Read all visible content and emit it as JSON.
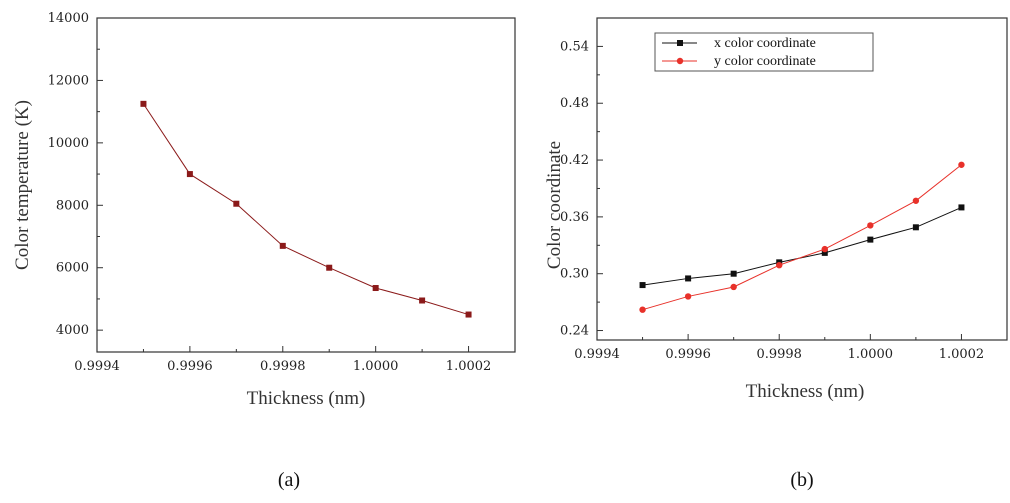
{
  "chart_data": [
    {
      "type": "line",
      "panel_label": "(a)",
      "xlabel": "Thickness (nm)",
      "ylabel": "Color temperature (K)",
      "xlim": [
        0.9994,
        1.0003
      ],
      "ylim": [
        3300,
        14000
      ],
      "x_ticks": [
        "0.9994",
        "0.9996",
        "0.9998",
        "1.0000",
        "1.0002"
      ],
      "y_ticks": [
        "4000",
        "6000",
        "8000",
        "10000",
        "12000",
        "14000"
      ],
      "series": [
        {
          "name": "",
          "color": "#8b1a1a",
          "x": [
            0.9995,
            0.9996,
            0.9997,
            0.9998,
            0.9999,
            1.0,
            1.0001,
            1.0002
          ],
          "y": [
            11250,
            9000,
            8050,
            6700,
            6000,
            5350,
            4950,
            4500
          ]
        }
      ]
    },
    {
      "type": "line",
      "panel_label": "(b)",
      "xlabel": "Thickness (nm)",
      "ylabel": "Color coordinate",
      "xlim": [
        0.9994,
        1.0003
      ],
      "ylim": [
        0.23,
        0.57
      ],
      "x_ticks": [
        "0.9994",
        "0.9996",
        "0.9998",
        "1.0000",
        "1.0002"
      ],
      "y_ticks": [
        "0.24",
        "0.30",
        "0.36",
        "0.42",
        "0.48",
        "0.54"
      ],
      "legend": "top-left",
      "series": [
        {
          "name": "x color coordinate",
          "color": "#111111",
          "x": [
            0.9995,
            0.9996,
            0.9997,
            0.9998,
            0.9999,
            1.0,
            1.0001,
            1.0002
          ],
          "y": [
            0.288,
            0.295,
            0.3,
            0.312,
            0.322,
            0.336,
            0.349,
            0.37
          ]
        },
        {
          "name": "y color coordinate",
          "color": "#e8312a",
          "x": [
            0.9995,
            0.9996,
            0.9997,
            0.9998,
            0.9999,
            1.0,
            1.0001,
            1.0002
          ],
          "y": [
            0.262,
            0.276,
            0.286,
            0.309,
            0.326,
            0.351,
            0.377,
            0.415
          ]
        }
      ]
    }
  ]
}
